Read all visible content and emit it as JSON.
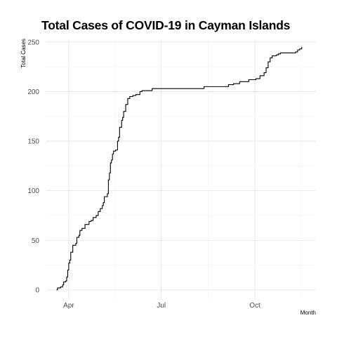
{
  "chart_data": {
    "type": "line",
    "title": "Total Cases of COVID-19 in Cayman Islands",
    "xlabel": "Month",
    "ylabel": "Total Cases",
    "x_tick_labels": [
      "Apr",
      "Jul",
      "Oct"
    ],
    "x_tick_dates": [
      "2020-04-01",
      "2020-07-01",
      "2020-10-01"
    ],
    "xlim": [
      "2020-03-10",
      "2020-11-30"
    ],
    "ylim": [
      -10,
      252
    ],
    "y_ticks": [
      0,
      50,
      100,
      150,
      200,
      250
    ],
    "grid": true,
    "series": [
      {
        "color": "#000000",
        "points": [
          [
            "2020-03-20",
            0
          ],
          [
            "2020-03-21",
            2
          ],
          [
            "2020-03-24",
            3
          ],
          [
            "2020-03-26",
            5
          ],
          [
            "2020-03-27",
            8
          ],
          [
            "2020-03-29",
            9
          ],
          [
            "2020-03-30",
            13
          ],
          [
            "2020-03-31",
            20
          ],
          [
            "2020-04-01",
            27
          ],
          [
            "2020-04-02",
            30
          ],
          [
            "2020-04-03",
            38
          ],
          [
            "2020-04-05",
            45
          ],
          [
            "2020-04-08",
            47
          ],
          [
            "2020-04-09",
            53
          ],
          [
            "2020-04-11",
            55
          ],
          [
            "2020-04-12",
            60
          ],
          [
            "2020-04-14",
            62
          ],
          [
            "2020-04-17",
            66
          ],
          [
            "2020-04-21",
            69
          ],
          [
            "2020-04-23",
            70
          ],
          [
            "2020-04-25",
            73
          ],
          [
            "2020-04-28",
            75
          ],
          [
            "2020-04-30",
            79
          ],
          [
            "2020-05-02",
            82
          ],
          [
            "2020-05-04",
            85
          ],
          [
            "2020-05-05",
            88
          ],
          [
            "2020-05-06",
            94
          ],
          [
            "2020-05-09",
            97
          ],
          [
            "2020-05-10",
            111
          ],
          [
            "2020-05-11",
            118
          ],
          [
            "2020-05-12",
            128
          ],
          [
            "2020-05-13",
            131
          ],
          [
            "2020-05-14",
            137
          ],
          [
            "2020-05-15",
            140
          ],
          [
            "2020-05-17",
            141
          ],
          [
            "2020-05-19",
            150
          ],
          [
            "2020-05-20",
            154
          ],
          [
            "2020-05-21",
            164
          ],
          [
            "2020-05-23",
            171
          ],
          [
            "2020-05-24",
            174
          ],
          [
            "2020-05-25",
            180
          ],
          [
            "2020-05-27",
            187
          ],
          [
            "2020-05-29",
            193
          ],
          [
            "2020-05-31",
            195
          ],
          [
            "2020-06-03",
            196
          ],
          [
            "2020-06-06",
            197
          ],
          [
            "2020-06-10",
            200
          ],
          [
            "2020-06-12",
            201
          ],
          [
            "2020-06-22",
            203
          ],
          [
            "2020-07-15",
            203
          ],
          [
            "2020-08-01",
            203
          ],
          [
            "2020-08-12",
            205
          ],
          [
            "2020-08-25",
            205
          ],
          [
            "2020-09-03",
            205
          ],
          [
            "2020-09-05",
            207
          ],
          [
            "2020-09-10",
            208
          ],
          [
            "2020-09-16",
            210
          ],
          [
            "2020-09-25",
            212
          ],
          [
            "2020-10-02",
            213
          ],
          [
            "2020-10-06",
            216
          ],
          [
            "2020-10-10",
            219
          ],
          [
            "2020-10-12",
            224
          ],
          [
            "2020-10-14",
            230
          ],
          [
            "2020-10-16",
            234
          ],
          [
            "2020-10-18",
            236
          ],
          [
            "2020-10-22",
            237
          ],
          [
            "2020-10-24",
            238
          ],
          [
            "2020-10-26",
            239
          ],
          [
            "2020-11-04",
            239
          ],
          [
            "2020-11-10",
            240
          ],
          [
            "2020-11-12",
            242
          ],
          [
            "2020-11-14",
            243
          ],
          [
            "2020-11-16",
            245
          ]
        ]
      }
    ]
  }
}
